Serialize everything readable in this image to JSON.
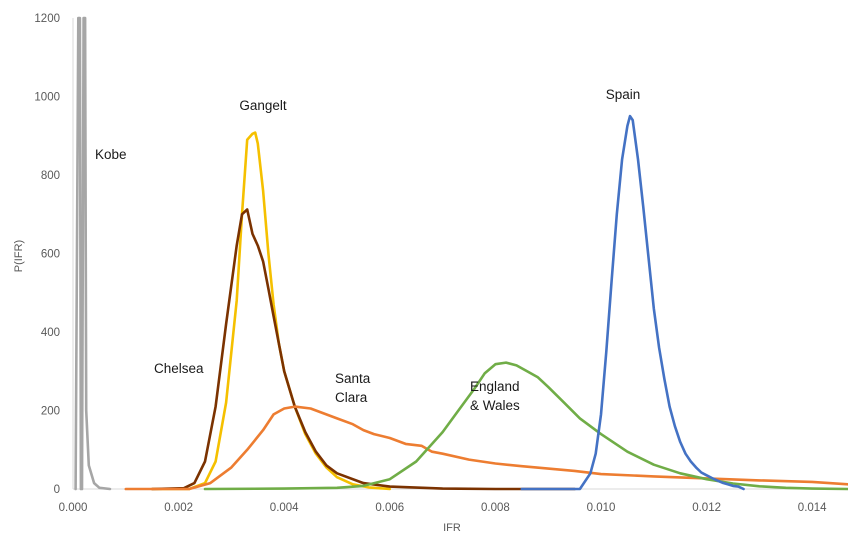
{
  "chart_data": {
    "type": "line",
    "title": "",
    "xlabel": "IFR",
    "ylabel": "P(IFR)",
    "xlim": [
      0,
      0.015
    ],
    "ylim": [
      0,
      1200
    ],
    "x_ticks": [
      0,
      0.002,
      0.004,
      0.006,
      0.008,
      0.01,
      0.012,
      0.014
    ],
    "x_tick_labels": [
      "0.000",
      "0.002",
      "0.004",
      "0.006",
      "0.008",
      "0.010",
      "0.012",
      "0.014"
    ],
    "y_ticks": [
      0,
      200,
      400,
      600,
      800,
      1000,
      1200
    ],
    "y_tick_labels": [
      "0",
      "200",
      "400",
      "600",
      "800",
      "1000",
      "1200"
    ],
    "grid": false,
    "legend": "none",
    "series": [
      {
        "name": "Kobe",
        "color": "#a6a6a6",
        "label_lines": [
          "Kobe"
        ],
        "points": [
          [
            5e-05,
            0
          ],
          [
            0.0001,
            1200
          ],
          [
            0.00013,
            1200
          ],
          [
            0.00015,
            0
          ],
          [
            0.00017,
            0
          ],
          [
            0.0002,
            1200
          ],
          [
            0.00023,
            1200
          ],
          [
            0.00025,
            200
          ],
          [
            0.0003,
            60
          ],
          [
            0.0004,
            15
          ],
          [
            0.0005,
            3
          ],
          [
            0.0007,
            0
          ]
        ]
      },
      {
        "name": "Gangelt",
        "color": "#f5c000",
        "label_lines": [
          "Gangelt"
        ],
        "points": [
          [
            0.0015,
            0
          ],
          [
            0.0022,
            0
          ],
          [
            0.0025,
            15
          ],
          [
            0.0027,
            70
          ],
          [
            0.0029,
            220
          ],
          [
            0.0031,
            480
          ],
          [
            0.0032,
            700
          ],
          [
            0.0033,
            890
          ],
          [
            0.0034,
            905
          ],
          [
            0.00345,
            908
          ],
          [
            0.0035,
            880
          ],
          [
            0.0036,
            760
          ],
          [
            0.0037,
            600
          ],
          [
            0.0038,
            470
          ],
          [
            0.0039,
            370
          ],
          [
            0.004,
            300
          ],
          [
            0.0042,
            210
          ],
          [
            0.0044,
            140
          ],
          [
            0.0046,
            90
          ],
          [
            0.0048,
            55
          ],
          [
            0.005,
            30
          ],
          [
            0.0053,
            12
          ],
          [
            0.0056,
            4
          ],
          [
            0.006,
            0
          ]
        ]
      },
      {
        "name": "Chelsea",
        "color": "#7b3200",
        "label_lines": [
          "Chelsea"
        ],
        "points": [
          [
            0.0015,
            0
          ],
          [
            0.0021,
            2
          ],
          [
            0.0023,
            15
          ],
          [
            0.0025,
            70
          ],
          [
            0.0027,
            210
          ],
          [
            0.0029,
            420
          ],
          [
            0.0031,
            620
          ],
          [
            0.0032,
            700
          ],
          [
            0.0033,
            712
          ],
          [
            0.0034,
            650
          ],
          [
            0.0035,
            620
          ],
          [
            0.0036,
            580
          ],
          [
            0.0037,
            510
          ],
          [
            0.0038,
            440
          ],
          [
            0.0039,
            370
          ],
          [
            0.004,
            300
          ],
          [
            0.0042,
            210
          ],
          [
            0.0044,
            145
          ],
          [
            0.0046,
            95
          ],
          [
            0.0048,
            60
          ],
          [
            0.005,
            40
          ],
          [
            0.0055,
            15
          ],
          [
            0.006,
            6
          ],
          [
            0.007,
            1
          ],
          [
            0.008,
            0
          ],
          [
            0.0095,
            0
          ]
        ]
      },
      {
        "name": "Santa Clara",
        "color": "#ed7d31",
        "label_lines": [
          "Santa",
          "Clara"
        ],
        "points": [
          [
            0.001,
            0
          ],
          [
            0.0022,
            0
          ],
          [
            0.0026,
            15
          ],
          [
            0.003,
            55
          ],
          [
            0.0033,
            100
          ],
          [
            0.0036,
            150
          ],
          [
            0.0038,
            190
          ],
          [
            0.004,
            205
          ],
          [
            0.0042,
            210
          ],
          [
            0.0045,
            205
          ],
          [
            0.005,
            180
          ],
          [
            0.0053,
            165
          ],
          [
            0.0055,
            150
          ],
          [
            0.0057,
            140
          ],
          [
            0.006,
            130
          ],
          [
            0.0063,
            115
          ],
          [
            0.0066,
            110
          ],
          [
            0.0068,
            95
          ],
          [
            0.007,
            90
          ],
          [
            0.0075,
            75
          ],
          [
            0.008,
            65
          ],
          [
            0.0085,
            58
          ],
          [
            0.009,
            52
          ],
          [
            0.0095,
            46
          ],
          [
            0.01,
            38
          ],
          [
            0.011,
            32
          ],
          [
            0.012,
            27
          ],
          [
            0.013,
            22
          ],
          [
            0.014,
            18
          ],
          [
            0.015,
            12
          ]
        ]
      },
      {
        "name": "England & Wales",
        "color": "#70ad47",
        "label_lines": [
          "England",
          "& Wales"
        ],
        "points": [
          [
            0.0025,
            0
          ],
          [
            0.004,
            1
          ],
          [
            0.005,
            3
          ],
          [
            0.0055,
            8
          ],
          [
            0.006,
            25
          ],
          [
            0.0065,
            70
          ],
          [
            0.007,
            145
          ],
          [
            0.0073,
            200
          ],
          [
            0.0076,
            255
          ],
          [
            0.0078,
            295
          ],
          [
            0.008,
            318
          ],
          [
            0.0082,
            322
          ],
          [
            0.0084,
            315
          ],
          [
            0.0086,
            300
          ],
          [
            0.0088,
            285
          ],
          [
            0.009,
            260
          ],
          [
            0.0093,
            220
          ],
          [
            0.0096,
            180
          ],
          [
            0.01,
            140
          ],
          [
            0.0105,
            95
          ],
          [
            0.011,
            62
          ],
          [
            0.0115,
            40
          ],
          [
            0.012,
            25
          ],
          [
            0.0125,
            14
          ],
          [
            0.013,
            7
          ],
          [
            0.0135,
            3
          ],
          [
            0.014,
            1
          ],
          [
            0.015,
            0
          ]
        ]
      },
      {
        "name": "Spain",
        "color": "#4472c4",
        "label_lines": [
          "Spain"
        ],
        "points": [
          [
            0.0085,
            0
          ],
          [
            0.0096,
            0
          ],
          [
            0.0098,
            40
          ],
          [
            0.0099,
            90
          ],
          [
            0.01,
            190
          ],
          [
            0.0101,
            350
          ],
          [
            0.0102,
            530
          ],
          [
            0.0103,
            700
          ],
          [
            0.0104,
            840
          ],
          [
            0.0105,
            925
          ],
          [
            0.01055,
            950
          ],
          [
            0.0106,
            940
          ],
          [
            0.0107,
            840
          ],
          [
            0.0108,
            720
          ],
          [
            0.0109,
            590
          ],
          [
            0.011,
            460
          ],
          [
            0.0111,
            360
          ],
          [
            0.0112,
            280
          ],
          [
            0.0113,
            210
          ],
          [
            0.0114,
            160
          ],
          [
            0.0115,
            120
          ],
          [
            0.0116,
            90
          ],
          [
            0.0117,
            70
          ],
          [
            0.0118,
            55
          ],
          [
            0.0119,
            42
          ],
          [
            0.012,
            35
          ],
          [
            0.0121,
            28
          ],
          [
            0.0122,
            22
          ],
          [
            0.0123,
            16
          ],
          [
            0.0124,
            12
          ],
          [
            0.0125,
            8
          ],
          [
            0.0126,
            6
          ],
          [
            0.0127,
            0
          ]
        ]
      }
    ]
  }
}
